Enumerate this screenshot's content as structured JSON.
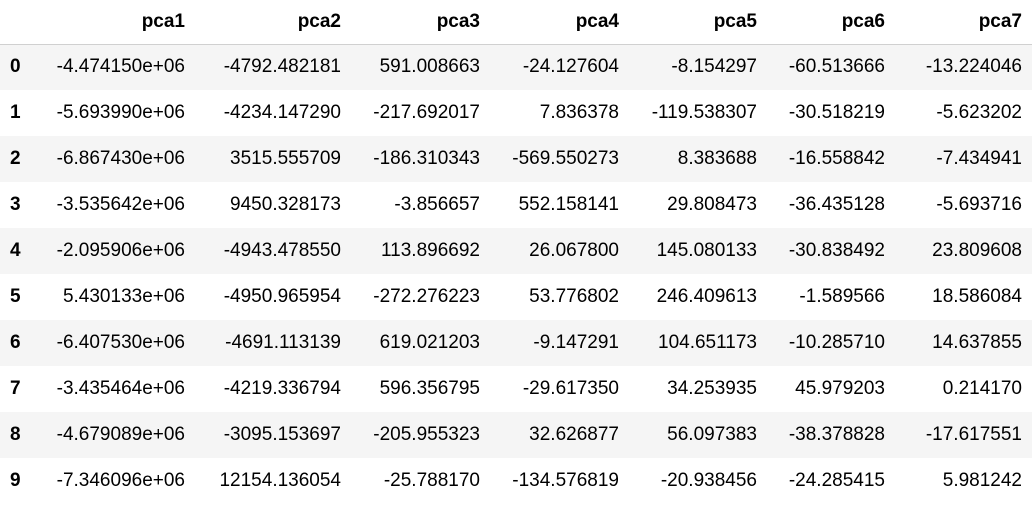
{
  "table": {
    "index_header": "",
    "columns": [
      "pca1",
      "pca2",
      "pca3",
      "pca4",
      "pca5",
      "pca6",
      "pca7"
    ],
    "rows": [
      {
        "index": "0",
        "cells": [
          "-4.474150e+06",
          "-4792.482181",
          "591.008663",
          "-24.127604",
          "-8.154297",
          "-60.513666",
          "-13.224046"
        ]
      },
      {
        "index": "1",
        "cells": [
          "-5.693990e+06",
          "-4234.147290",
          "-217.692017",
          "7.836378",
          "-119.538307",
          "-30.518219",
          "-5.623202"
        ]
      },
      {
        "index": "2",
        "cells": [
          "-6.867430e+06",
          "3515.555709",
          "-186.310343",
          "-569.550273",
          "8.383688",
          "-16.558842",
          "-7.434941"
        ]
      },
      {
        "index": "3",
        "cells": [
          "-3.535642e+06",
          "9450.328173",
          "-3.856657",
          "552.158141",
          "29.808473",
          "-36.435128",
          "-5.693716"
        ]
      },
      {
        "index": "4",
        "cells": [
          "-2.095906e+06",
          "-4943.478550",
          "113.896692",
          "26.067800",
          "145.080133",
          "-30.838492",
          "23.809608"
        ]
      },
      {
        "index": "5",
        "cells": [
          "5.430133e+06",
          "-4950.965954",
          "-272.276223",
          "53.776802",
          "246.409613",
          "-1.589566",
          "18.586084"
        ]
      },
      {
        "index": "6",
        "cells": [
          "-6.407530e+06",
          "-4691.113139",
          "619.021203",
          "-9.147291",
          "104.651173",
          "-10.285710",
          "14.637855"
        ]
      },
      {
        "index": "7",
        "cells": [
          "-3.435464e+06",
          "-4219.336794",
          "596.356795",
          "-29.617350",
          "34.253935",
          "45.979203",
          "0.214170"
        ]
      },
      {
        "index": "8",
        "cells": [
          "-4.679089e+06",
          "-3095.153697",
          "-205.955323",
          "32.626877",
          "56.097383",
          "-38.378828",
          "-17.617551"
        ]
      },
      {
        "index": "9",
        "cells": [
          "-7.346096e+06",
          "12154.136054",
          "-25.788170",
          "-134.576819",
          "-20.938456",
          "-24.285415",
          "5.981242"
        ]
      }
    ]
  },
  "colors": {
    "stripe": "#f5f5f5",
    "background": "#ffffff",
    "header_border": "#d0d0d0"
  }
}
